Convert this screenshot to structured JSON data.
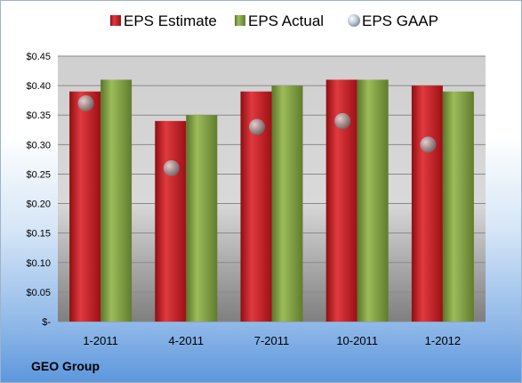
{
  "company": "GEO Group",
  "colors": {
    "estimate": "#c8161d",
    "actual": "#7a9a3c",
    "gaap": "#a0a0a0"
  },
  "chart_data": {
    "type": "bar",
    "categories": [
      "1-2011",
      "4-2011",
      "7-2011",
      "10-2011",
      "1-2012"
    ],
    "series": [
      {
        "name": "EPS Estimate",
        "values": [
          0.39,
          0.34,
          0.39,
          0.41,
          0.4
        ]
      },
      {
        "name": "EPS Actual",
        "values": [
          0.41,
          0.35,
          0.4,
          0.41,
          0.39
        ]
      },
      {
        "name": "EPS GAAP",
        "values": [
          0.37,
          0.26,
          0.33,
          0.34,
          0.3
        ],
        "style": "marker"
      }
    ],
    "ylim": [
      0,
      0.45
    ],
    "yticks": [
      0,
      0.05,
      0.1,
      0.15,
      0.2,
      0.25,
      0.3,
      0.35,
      0.4,
      0.45
    ],
    "ytick_labels": [
      "$-",
      "$0.05",
      "$0.10",
      "$0.15",
      "$0.20",
      "$0.25",
      "$0.30",
      "$0.35",
      "$0.40",
      "$0.45"
    ],
    "grid": true,
    "legend": "top"
  }
}
